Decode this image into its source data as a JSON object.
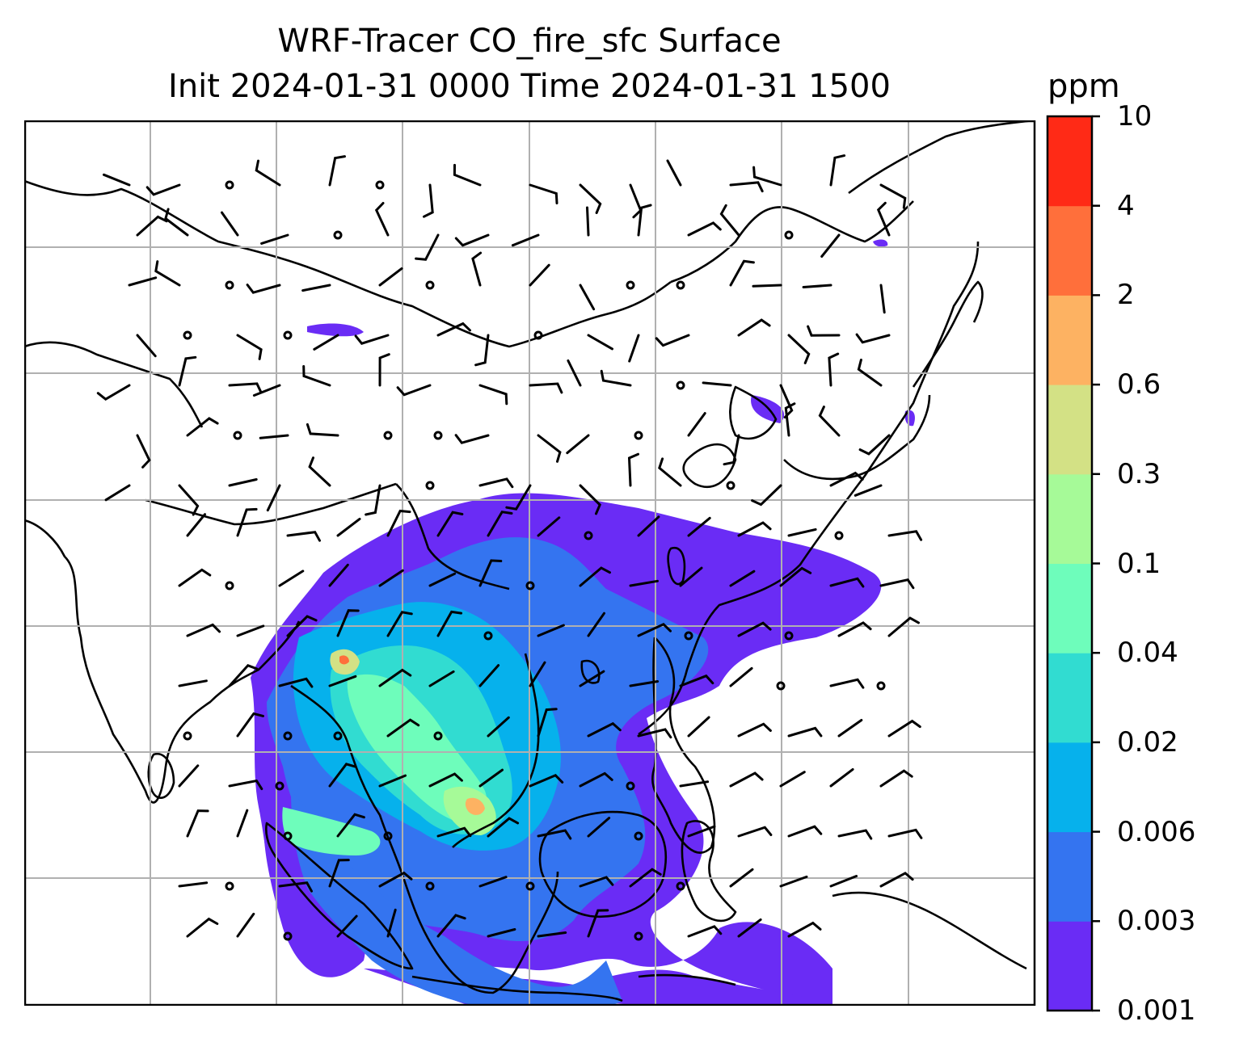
{
  "title": {
    "line1": "WRF-Tracer CO_fire_sfc Surface",
    "line2": "Init 2024-01-31 0000 Time 2024-01-31 1500"
  },
  "colorbar": {
    "unit": "ppm",
    "ticks": [
      "0.001",
      "0.003",
      "0.006",
      "0.02",
      "0.04",
      "0.1",
      "0.3",
      "0.6",
      "2",
      "4",
      "10"
    ],
    "colors": [
      "#6a2cf5",
      "#3474f0",
      "#06b1ec",
      "#31dcd1",
      "#6efdbb",
      "#a6fa98",
      "#d3e185",
      "#fdb262",
      "#ff6f3b",
      "#ff2a16"
    ]
  },
  "map": {
    "field": "CO_fire_sfc",
    "level": "Surface",
    "gridlines": true,
    "overlays": [
      "coastlines",
      "country-borders",
      "wind-barbs"
    ]
  }
}
